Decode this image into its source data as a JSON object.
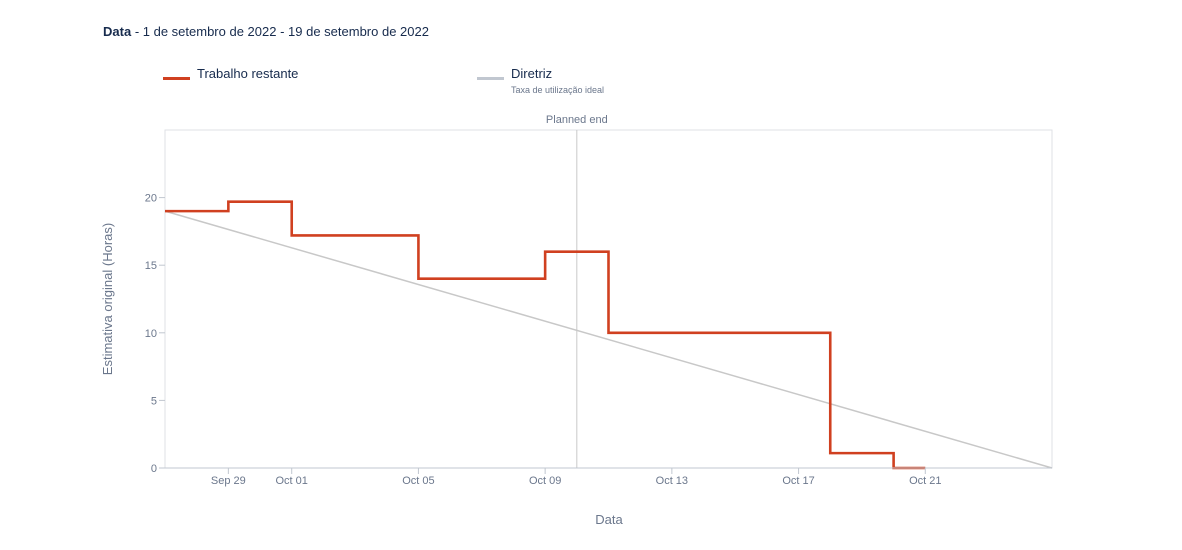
{
  "header": {
    "label": "Data",
    "range": "1 de setembro de 2022 - 19 de setembro de 2022"
  },
  "legend": [
    {
      "name": "Trabalho restante",
      "description": "",
      "color": "#d04020"
    },
    {
      "name": "Diretriz",
      "description": "Taxa de utilização ideal",
      "color": "#c1c7d0"
    }
  ],
  "chart_data": {
    "type": "line",
    "xlabel": "Data",
    "ylabel": "Estimativa original (Horas)",
    "x_range": [
      "2022-09-27",
      "2022-10-25"
    ],
    "ylim": [
      0,
      25
    ],
    "yticks": [
      0,
      5,
      10,
      15,
      20
    ],
    "xticks": [
      {
        "date": "2022-09-29",
        "label": "Sep 29"
      },
      {
        "date": "2022-10-01",
        "label": "Oct 01"
      },
      {
        "date": "2022-10-05",
        "label": "Oct 05"
      },
      {
        "date": "2022-10-09",
        "label": "Oct 09"
      },
      {
        "date": "2022-10-13",
        "label": "Oct 13"
      },
      {
        "date": "2022-10-17",
        "label": "Oct 17"
      },
      {
        "date": "2022-10-21",
        "label": "Oct 21"
      }
    ],
    "annotations": [
      {
        "type": "vline",
        "date": "2022-10-10",
        "label": "Planned end"
      }
    ],
    "series": [
      {
        "name": "Trabalho restante",
        "step": true,
        "color": "#d04020",
        "points": [
          {
            "x": "2022-09-27",
            "y": 19
          },
          {
            "x": "2022-09-29",
            "y": 19.7
          },
          {
            "x": "2022-10-01",
            "y": 17.2
          },
          {
            "x": "2022-10-05",
            "y": 14
          },
          {
            "x": "2022-10-09",
            "y": 16
          },
          {
            "x": "2022-10-11",
            "y": 10
          },
          {
            "x": "2022-10-18",
            "y": 1.1
          },
          {
            "x": "2022-10-20",
            "y": 0
          },
          {
            "x": "2022-10-21",
            "y": 0
          }
        ]
      },
      {
        "name": "Diretriz",
        "step": false,
        "color": "#c8c8c8",
        "points": [
          {
            "x": "2022-09-27",
            "y": 19
          },
          {
            "x": "2022-10-25",
            "y": 0
          }
        ]
      }
    ]
  }
}
